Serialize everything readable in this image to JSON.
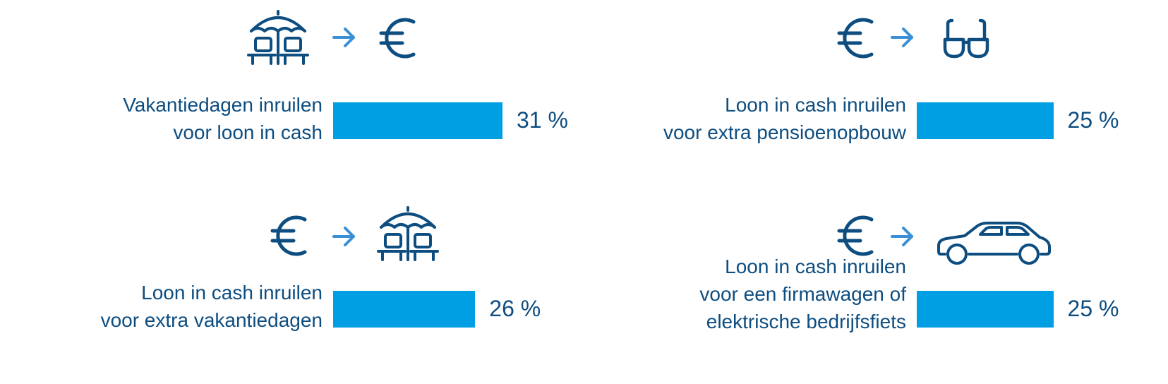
{
  "colors": {
    "bar": "#009fe3",
    "text": "#0d4d80",
    "icon": "#0d4d80",
    "arrow": "#3a8fd6"
  },
  "chart_data": {
    "type": "bar",
    "orientation": "horizontal",
    "xlim": [
      0,
      100
    ],
    "items": [
      {
        "label_lines": [
          "Vakantiedagen inruilen",
          "voor loon in cash"
        ],
        "value": 31,
        "value_label": "31 %",
        "icons": [
          "beach-umbrella",
          "arrow",
          "euro"
        ]
      },
      {
        "label_lines": [
          "Loon in cash inruilen",
          "voor extra pensioenopbouw"
        ],
        "value": 25,
        "value_label": "25 %",
        "icons": [
          "euro",
          "arrow",
          "glasses"
        ]
      },
      {
        "label_lines": [
          "Loon in cash inruilen",
          "voor extra vakantiedagen"
        ],
        "value": 26,
        "value_label": "26 %",
        "icons": [
          "euro",
          "arrow",
          "beach-umbrella"
        ]
      },
      {
        "label_lines": [
          "Loon in cash inruilen",
          "voor een firmawagen of",
          "elektrische bedrijfsfiets"
        ],
        "value": 25,
        "value_label": "25 %",
        "icons": [
          "euro",
          "arrow",
          "car"
        ]
      }
    ]
  }
}
